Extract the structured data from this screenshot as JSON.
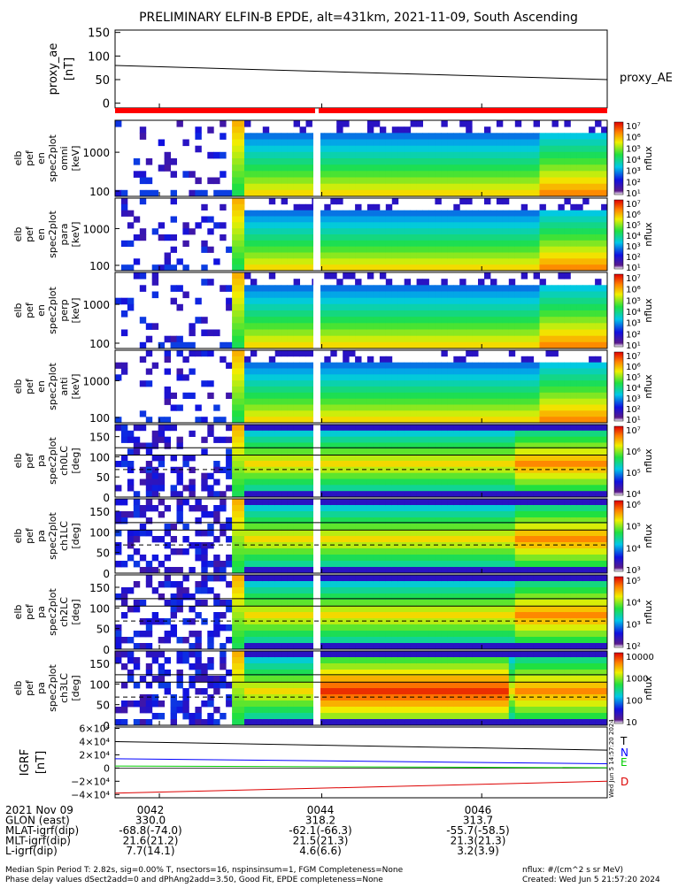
{
  "chart_data": {
    "title": "PRELIMINARY ELFIN-B EPDE, alt=431km, 2021-11-09, South Ascending",
    "date_label": "2021 Nov 09",
    "time_ticks": [
      "0042",
      "0044",
      "0046"
    ],
    "proxy_ae": {
      "type": "line",
      "ylabel": "proxy_ae\n[nT]",
      "legend": "proxy_AE",
      "ylim": [
        -10,
        155
      ],
      "yticks": [
        "150",
        "100",
        "50",
        "0"
      ],
      "x": [
        0,
        1
      ],
      "y": [
        80,
        50
      ]
    },
    "spectrograms": [
      {
        "type": "heatmap",
        "ylabel": [
          "elb",
          "pef",
          "en",
          "spec2plot",
          "omni",
          "[keV]"
        ],
        "yticks": [
          "1000",
          "100"
        ],
        "colorbar_label": "nflux",
        "colorbar_ticks": [
          "10⁷",
          "10⁶",
          "10⁵",
          "10⁴",
          "10³",
          "10²",
          "10¹"
        ]
      },
      {
        "type": "heatmap",
        "ylabel": [
          "elb",
          "pef",
          "en",
          "spec2plot",
          "para",
          "[keV]"
        ],
        "yticks": [
          "1000",
          "100"
        ],
        "colorbar_label": "nflux",
        "colorbar_ticks": [
          "10⁷",
          "10⁶",
          "10⁵",
          "10⁴",
          "10³",
          "10²",
          "10¹"
        ]
      },
      {
        "type": "heatmap",
        "ylabel": [
          "elb",
          "pef",
          "en",
          "spec2plot",
          "perp",
          "[keV]"
        ],
        "yticks": [
          "1000",
          "100"
        ],
        "colorbar_label": "nflux",
        "colorbar_ticks": [
          "10⁷",
          "10⁶",
          "10⁵",
          "10⁴",
          "10³",
          "10²",
          "10¹"
        ]
      },
      {
        "type": "heatmap",
        "ylabel": [
          "elb",
          "pef",
          "en",
          "spec2plot",
          "anti",
          "[keV]"
        ],
        "yticks": [
          "1000",
          "100"
        ],
        "colorbar_label": "nflux",
        "colorbar_ticks": [
          "10⁷",
          "10⁶",
          "10⁵",
          "10⁴",
          "10³",
          "10²",
          "10¹"
        ]
      },
      {
        "type": "heatmap",
        "ylabel": [
          "elb",
          "pef",
          "pa",
          "spec2plot",
          "ch0LC",
          "[deg]"
        ],
        "yticks": [
          "150",
          "100",
          "50",
          "0"
        ],
        "colorbar_label": "nflux",
        "colorbar_ticks": [
          "10⁷",
          "10⁶",
          "10⁵",
          "10⁴"
        ]
      },
      {
        "type": "heatmap",
        "ylabel": [
          "elb",
          "pef",
          "pa",
          "spec2plot",
          "ch1LC",
          "[deg]"
        ],
        "yticks": [
          "150",
          "100",
          "50",
          "0"
        ],
        "colorbar_label": "nflux",
        "colorbar_ticks": [
          "10⁶",
          "10⁵",
          "10⁴",
          "10³"
        ]
      },
      {
        "type": "heatmap",
        "ylabel": [
          "elb",
          "pef",
          "pa",
          "spec2plot",
          "ch2LC",
          "[deg]"
        ],
        "yticks": [
          "150",
          "100",
          "50",
          "0"
        ],
        "colorbar_label": "nflux",
        "colorbar_ticks": [
          "10⁵",
          "10⁴",
          "10³",
          "10²"
        ]
      },
      {
        "type": "heatmap",
        "ylabel": [
          "elb",
          "pef",
          "pa",
          "spec2plot",
          "ch3LC",
          "[deg]"
        ],
        "yticks": [
          "150",
          "100",
          "50",
          "0"
        ],
        "colorbar_label": "nflux",
        "colorbar_ticks": [
          "10000",
          "1000",
          "100",
          "10"
        ]
      }
    ],
    "igrf": {
      "type": "line",
      "ylabel": "IGRF\n[nT]",
      "yticks": [
        "6×10⁴",
        "4×10⁴",
        "2×10⁴",
        "0",
        "−2×10⁴",
        "−4×10⁴"
      ],
      "ylim": [
        -45000,
        62000
      ],
      "x": [
        0,
        1
      ],
      "series": [
        {
          "name": "T",
          "color": "#000000",
          "y": [
            40000,
            27000
          ]
        },
        {
          "name": "N",
          "color": "#0000ff",
          "y": [
            14000,
            6500
          ]
        },
        {
          "name": "E",
          "color": "#00cc00",
          "y": [
            3000,
            500
          ]
        },
        {
          "name": "D",
          "color": "#dd0000",
          "y": [
            -38000,
            -20000
          ]
        }
      ]
    },
    "side_stamp": "Wed Jun  5 14:57:20 2024"
  },
  "footer_table": {
    "rows": [
      {
        "label": "2021 Nov 09",
        "values": [
          "0042",
          "0044",
          "0046"
        ]
      },
      {
        "label": "GLON (east)",
        "values": [
          "330.0",
          "318.2",
          "313.7"
        ]
      },
      {
        "label": "MLAT-igrf(dip)",
        "values": [
          "-68.8(-74.0)",
          "-62.1(-66.3)",
          "-55.7(-58.5)"
        ]
      },
      {
        "label": "MLT-igrf(dip)",
        "values": [
          "21.6(21.2)",
          "21.5(21.3)",
          "21.3(21.3)"
        ]
      },
      {
        "label": "L-igrf(dip)",
        "values": [
          "7.7(14.1)",
          "4.6(6.6)",
          "3.2(3.9)"
        ]
      }
    ]
  },
  "footer_notes": {
    "line1": "Median Spin Period T: 2.82s, sig=0.00% T, nsectors=16, nspinsinsum=1, FGM Completeness=None",
    "line2": "Phase delay values dSect2add=0 and dPhAng2add=3.50, Good Fit, EPDE completeness=None",
    "units": "nflux: #/(cm^2 s sr MeV)",
    "created": "Created: Wed Jun  5 21:57:20 2024"
  },
  "colors": {
    "status_bar": "#ff0000",
    "status_gap": "#ffffff"
  }
}
